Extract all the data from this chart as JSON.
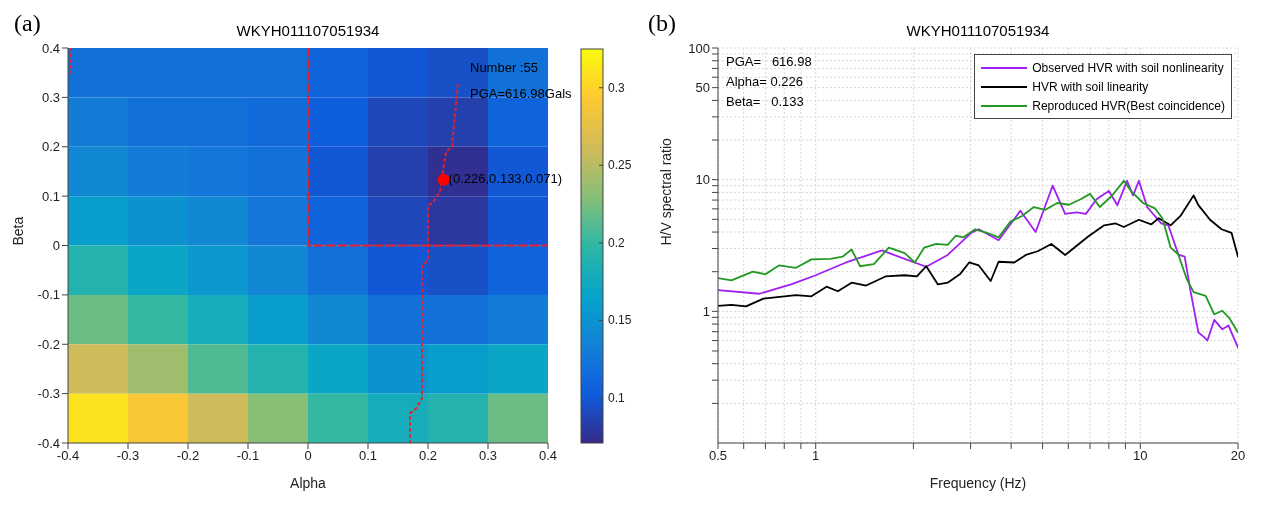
{
  "chart_data": [
    {
      "type": "heatmap",
      "title": "WKYH011107051934",
      "xlabel": "Alpha",
      "ylabel": "Beta",
      "annotations": [
        "(a)",
        "Number :55",
        "PGA=616.98Gals",
        {
          "text": "(0.226,0.133,0.071)",
          "x": 0.226,
          "y": 0.133
        }
      ],
      "cells": [
        [
          0.12,
          0.12,
          0.12,
          0.12,
          0.11,
          0.1,
          0.095,
          0.12
        ],
        [
          0.13,
          0.12,
          0.12,
          0.115,
          0.105,
          0.09,
          0.085,
          0.11
        ],
        [
          0.14,
          0.13,
          0.125,
          0.12,
          0.1,
          0.085,
          0.075,
          0.1
        ],
        [
          0.16,
          0.15,
          0.14,
          0.125,
          0.11,
          0.09,
          0.08,
          0.1
        ],
        [
          0.19,
          0.17,
          0.155,
          0.14,
          0.12,
          0.1,
          0.095,
          0.11
        ],
        [
          0.22,
          0.2,
          0.18,
          0.16,
          0.14,
          0.12,
          0.12,
          0.13
        ],
        [
          0.26,
          0.24,
          0.21,
          0.19,
          0.17,
          0.15,
          0.16,
          0.17
        ],
        [
          0.31,
          0.29,
          0.26,
          0.23,
          0.2,
          0.18,
          0.19,
          0.22
        ]
      ],
      "clim": [
        0.071,
        0.325
      ],
      "cticks": [
        0.1,
        0.15,
        0.2,
        0.25,
        0.3
      ],
      "xlim": [
        -0.4,
        0.4
      ],
      "xticks": [
        -0.4,
        -0.3,
        -0.2,
        -0.1,
        0,
        0.1,
        0.2,
        0.3,
        0.4
      ],
      "ylim": [
        -0.4,
        0.4
      ],
      "yticks": [
        -0.4,
        -0.3,
        -0.2,
        -0.1,
        0,
        0.1,
        0.2,
        0.3,
        0.4
      ],
      "series": [
        {
          "type": "line",
          "line_style": "dotted",
          "color": "#e8202a",
          "x": [
            0.17,
            0.17,
            0.18,
            0.19,
            0.19,
            0.2,
            0.2,
            0.21,
            0.22,
            0.23,
            0.24,
            0.25
          ],
          "values": [
            -0.4,
            -0.34,
            -0.33,
            -0.31,
            -0.04,
            -0.03,
            0.08,
            0.09,
            0.11,
            0.19,
            0.2,
            0.33
          ]
        },
        {
          "type": "line",
          "line_style": "dotted",
          "color": "#e8202a",
          "x": [
            -0.395,
            -0.395
          ],
          "values": [
            0.4,
            0.35
          ]
        },
        {
          "type": "line",
          "line_style": "dashed",
          "color": "#e8202a",
          "x": [
            0,
            0,
            0.4
          ],
          "values": [
            0.4,
            0,
            0
          ]
        },
        {
          "type": "scatter",
          "marker": "circle",
          "color": "#ff0000",
          "x": [
            0.226
          ],
          "values": [
            0.133
          ]
        }
      ]
    },
    {
      "type": "line",
      "title": "WKYH011107051934",
      "xlabel": "Frequency (Hz)",
      "ylabel": "H/V spectral ratio",
      "annotations": [
        "(b)",
        "PGA=   616.98",
        "Alpha= 0.226",
        "Beta=   0.133"
      ],
      "log": "xy",
      "grid": true,
      "legend": "top right",
      "marker": "none",
      "xlim": [
        0.5,
        20
      ],
      "xticks": [
        0.5,
        {
          "value": 0.6,
          "label": null
        },
        {
          "value": 0.7,
          "label": null
        },
        {
          "value": 0.8,
          "label": null
        },
        {
          "value": 0.9,
          "label": null
        },
        1,
        {
          "value": 2,
          "label": null
        },
        {
          "value": 3,
          "label": null
        },
        {
          "value": 4,
          "label": null
        },
        {
          "value": 5,
          "label": null
        },
        {
          "value": 6,
          "label": null
        },
        {
          "value": 7,
          "label": null
        },
        {
          "value": 8,
          "label": null
        },
        {
          "value": 9,
          "label": null
        },
        10,
        20
      ],
      "ylim": [
        0.1,
        100
      ],
      "yticks": [
        {
          "value": 0.2,
          "label": null
        },
        {
          "value": 0.3,
          "label": null
        },
        {
          "value": 0.4,
          "label": null
        },
        {
          "value": 0.5,
          "label": null
        },
        {
          "value": 0.6,
          "label": null
        },
        {
          "value": 0.7,
          "label": null
        },
        {
          "value": 0.8,
          "label": null
        },
        {
          "value": 0.9,
          "label": null
        },
        1,
        {
          "value": 2,
          "label": null
        },
        {
          "value": 3,
          "label": null
        },
        {
          "value": 4,
          "label": null
        },
        {
          "value": 5,
          "label": null
        },
        {
          "value": 6,
          "label": null
        },
        {
          "value": 7,
          "label": null
        },
        {
          "value": 8,
          "label": null
        },
        {
          "value": 9,
          "label": null
        },
        10,
        {
          "value": 20,
          "label": null
        },
        {
          "value": 30,
          "label": null
        },
        {
          "value": 40,
          "label": null
        },
        50,
        {
          "value": 60,
          "label": null
        },
        {
          "value": 70,
          "label": null
        },
        {
          "value": 80,
          "label": null
        },
        {
          "value": 90,
          "label": null
        },
        100
      ],
      "series": [
        {
          "name": "Observed HVR with soil nonlinearity",
          "color": "#a020f0",
          "x": [
            0.5,
            0.67,
            0.84,
            1.0,
            1.24,
            1.6,
            1.88,
            2.19,
            2.55,
            3.02,
            3.18,
            3.66,
            4.27,
            4.76,
            5.37,
            5.87,
            6.37,
            6.8,
            7.33,
            8.0,
            8.5,
            9.1,
            9.5,
            9.9,
            10.5,
            11.6,
            12.2,
            13.1,
            13.7,
            14.3,
            15.1,
            15.7,
            16.1,
            16.9,
            17.9,
            18.7,
            20
          ],
          "values": [
            1.45,
            1.36,
            1.6,
            1.88,
            2.35,
            2.9,
            2.5,
            2.18,
            2.68,
            3.96,
            4.2,
            3.47,
            5.8,
            4.0,
            9.0,
            5.5,
            5.65,
            5.5,
            7.1,
            8.2,
            6.4,
            9.8,
            7.6,
            9.8,
            6.2,
            4.65,
            4.5,
            2.7,
            2.6,
            1.4,
            0.69,
            0.64,
            0.6,
            0.86,
            0.73,
            0.78,
            0.53
          ]
        },
        {
          "name": "HVR with soil linearity",
          "color": "#000000",
          "x": [
            0.5,
            0.55,
            0.61,
            0.69,
            0.87,
            0.97,
            1.08,
            1.17,
            1.29,
            1.43,
            1.64,
            1.88,
            2.05,
            2.19,
            2.38,
            2.55,
            2.78,
            2.97,
            3.18,
            3.46,
            3.66,
            4.09,
            4.44,
            4.83,
            5.32,
            5.87,
            6.37,
            6.91,
            7.74,
            8.4,
            8.9,
            9.9,
            10.8,
            11.4,
            12.4,
            13.3,
            14.6,
            15.1,
            16.4,
            17.8,
            19.1,
            20
          ],
          "values": [
            1.1,
            1.12,
            1.09,
            1.25,
            1.33,
            1.3,
            1.54,
            1.42,
            1.65,
            1.57,
            1.84,
            1.88,
            1.84,
            2.2,
            1.6,
            1.65,
            1.91,
            2.35,
            2.23,
            1.7,
            2.38,
            2.35,
            2.68,
            2.86,
            3.25,
            2.68,
            3.15,
            3.7,
            4.5,
            4.65,
            4.37,
            4.96,
            4.57,
            5.1,
            4.5,
            5.3,
            7.6,
            6.4,
            4.96,
            4.2,
            3.95,
            2.6
          ]
        },
        {
          "name": "Reproduced HVR(Best coincidence)",
          "color": "#229922",
          "x": [
            0.5,
            0.55,
            0.64,
            0.7,
            0.77,
            0.87,
            0.97,
            1.11,
            1.21,
            1.29,
            1.37,
            1.51,
            1.68,
            1.88,
            2.02,
            2.16,
            2.35,
            2.55,
            2.7,
            2.85,
            3.1,
            3.37,
            3.66,
            3.98,
            4.32,
            4.7,
            5.1,
            5.55,
            6.03,
            6.55,
            7.0,
            7.5,
            8.18,
            8.9,
            9.4,
            10.2,
            11.1,
            11.7,
            12.4,
            13.1,
            13.9,
            14.6,
            15.9,
            16.9,
            17.9,
            18.8,
            20
          ],
          "values": [
            1.79,
            1.72,
            2.0,
            1.91,
            2.23,
            2.14,
            2.48,
            2.5,
            2.6,
            2.95,
            2.2,
            2.28,
            3.05,
            2.77,
            2.35,
            3.05,
            3.25,
            3.2,
            3.75,
            3.65,
            4.2,
            3.95,
            3.65,
            4.8,
            5.3,
            6.2,
            5.9,
            6.65,
            6.45,
            7.1,
            7.8,
            6.2,
            7.55,
            9.8,
            8.1,
            6.65,
            6.05,
            5.1,
            3.05,
            2.7,
            1.76,
            1.4,
            1.31,
            0.95,
            1.01,
            0.89,
            0.69
          ]
        }
      ]
    }
  ]
}
